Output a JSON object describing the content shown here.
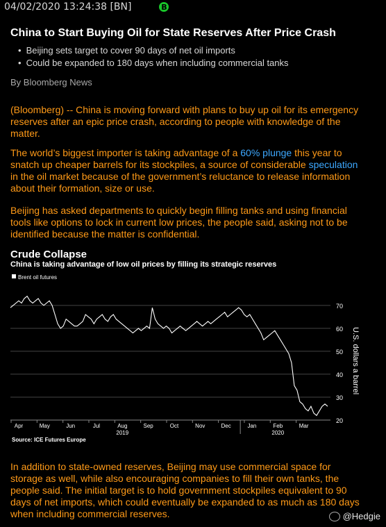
{
  "topbar": {
    "timestamp": "04/02/2020 13:24:38 [BN]",
    "badge": "B"
  },
  "article": {
    "headline": "China to Start Buying Oil for State Reserves After Price Crash",
    "bullets": [
      "Beijing sets target to cover 90 days of net oil imports",
      "Could be expanded to 180 days when including commercial tanks"
    ],
    "byline": "By Bloomberg News",
    "p1": "(Bloomberg) -- China is moving forward with plans to buy up oil for its emergency reserves after an epic price crash, according to people with knowledge of the matter.",
    "p2_a": "The world’s biggest importer is taking advantage of a ",
    "p2_link1": "60% plunge",
    "p2_b": " this year to snatch up cheaper barrels for its stockpiles, a source of considerable ",
    "p2_link2": "speculation",
    "p2_c": " in the oil market because of the government’s reluctance to release information about their formation, size or use.",
    "p3": "Beijing has asked departments to quickly begin filling tanks and using financial tools like options to lock in current low prices, the people said, asking not to be identified because the matter is confidential.",
    "p4": "In addition to state-owned reserves, Beijing may use commercial space for storage as well, while also encouraging companies to fill their own tanks, the people said. The initial target is to hold government stockpiles equivalent to 90 days of net imports, which could eventually be expanded to as much as 180 days when including commercial reserves."
  },
  "chart_data": {
    "type": "line",
    "title": "Crude Collapse",
    "subtitle": "China is taking advantage of low oil prices by filling its strategic reserves",
    "legend": "Brent oil futures",
    "ylabel": "U.S. dollars a barrel",
    "source": "Source: ICE Futures Europe",
    "ylim": [
      20,
      76
    ],
    "yticks": [
      20,
      30,
      40,
      50,
      60,
      70
    ],
    "months": [
      "Apr",
      "May",
      "Jun",
      "Jul",
      "Aug",
      "Sep",
      "Oct",
      "Nov",
      "Dec",
      "Jan",
      "Feb",
      "Mar"
    ],
    "years": [
      "2019",
      "2020"
    ],
    "series": [
      {
        "name": "Brent oil futures",
        "values": [
          69,
          70,
          71,
          72,
          71,
          73,
          74,
          72,
          71,
          72,
          73,
          71,
          70,
          71,
          72,
          70,
          66,
          62,
          60,
          61,
          64,
          63,
          62,
          61,
          61,
          62,
          63,
          66,
          65,
          64,
          62,
          64,
          65,
          66,
          64,
          63,
          65,
          66,
          64,
          63,
          62,
          61,
          60,
          59,
          58,
          59,
          60,
          59,
          60,
          61,
          60,
          69,
          64,
          62,
          61,
          60,
          61,
          60,
          58,
          59,
          60,
          61,
          60,
          59,
          60,
          61,
          62,
          63,
          62,
          61,
          62,
          63,
          62,
          63,
          64,
          65,
          66,
          67,
          65,
          66,
          67,
          68,
          69,
          68,
          66,
          65,
          66,
          64,
          62,
          60,
          58,
          55,
          56,
          57,
          58,
          59,
          57,
          55,
          53,
          51,
          49,
          45,
          35,
          33,
          28,
          27,
          25,
          24,
          26,
          23,
          22,
          24,
          26,
          27,
          26
        ]
      }
    ]
  },
  "watermark": {
    "text": "@Hedgie"
  },
  "colors": {
    "accent": "#ff9a17",
    "link": "#3da8ff",
    "badge": "#19c62a"
  }
}
